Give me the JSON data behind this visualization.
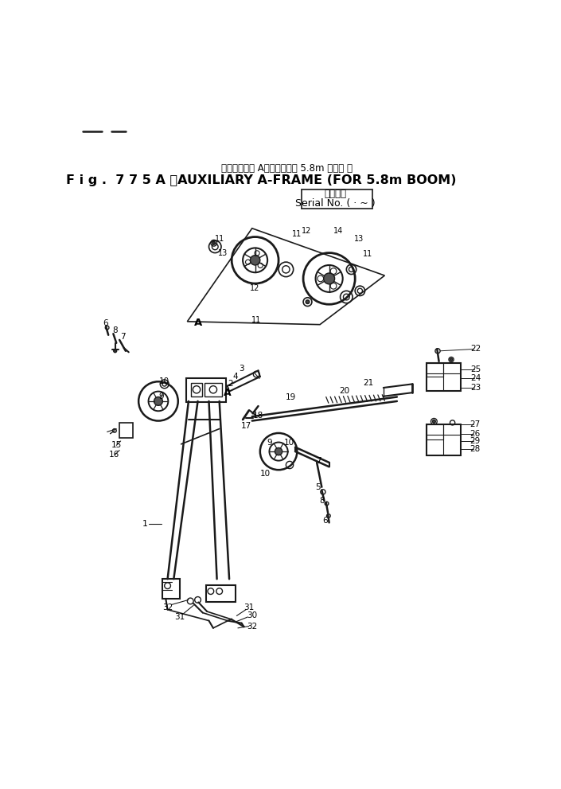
{
  "title_jp": "オキジアリ　 Aフレーム　　 5.8m ブーム 用",
  "title_en": "F i g .  7 7 5 A 　AUXILIARY A-FRAME (FOR 5.8m BOOM)",
  "subtitle_jp": "適用号機",
  "subtitle_en": "Serial No. ( · ~ )",
  "bg_color": "#ffffff",
  "line_color": "#1a1a1a",
  "text_color": "#000000"
}
